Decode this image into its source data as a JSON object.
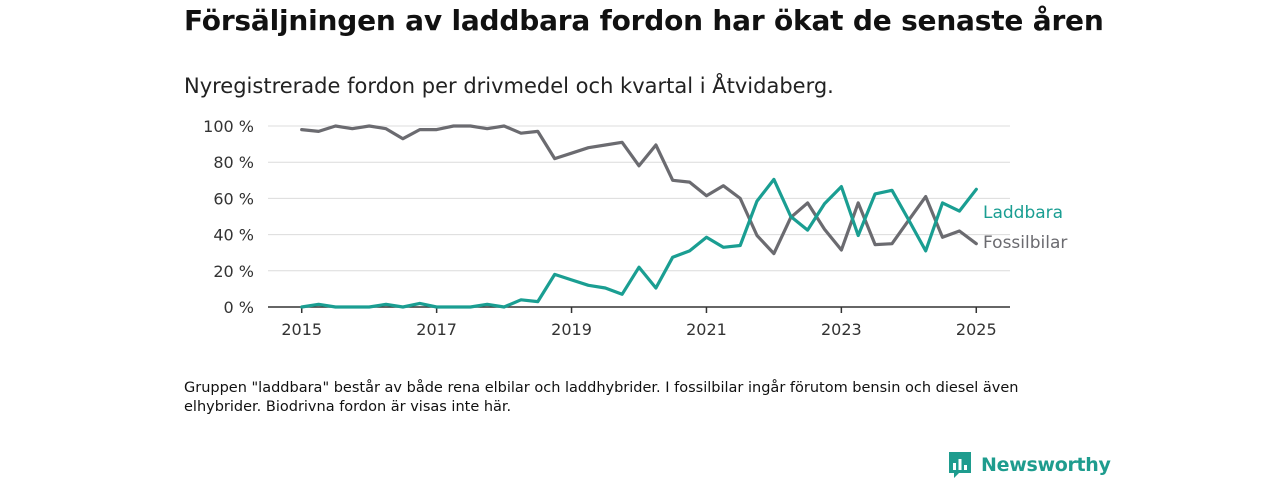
{
  "header": {
    "title": "Försäljningen av laddbara fordon har ökat de senaste åren",
    "subtitle": "Nyregistrerade fordon per drivmedel och kvartal i Åtvidaberg."
  },
  "footer": {
    "note": "Gruppen \"laddbara\" består av både rena elbilar och laddhybrider. I fossilbilar ingår förutom bensin och diesel även elhybrider. Biodrivna fordon är visas inte här.",
    "brand": "Newsworthy"
  },
  "colors": {
    "laddbara": "#1a9e92",
    "fossil": "#6b6b70",
    "grid": "#dcdcdc",
    "axis": "#333333"
  },
  "chart_data": {
    "type": "line",
    "title": "Försäljningen av laddbara fordon har ökat de senaste åren",
    "subtitle": "Nyregistrerade fordon per drivmedel och kvartal i Åtvidaberg.",
    "xlabel": "",
    "ylabel": "",
    "y_unit": "%",
    "ylim": [
      0,
      100
    ],
    "y_ticks": [
      0,
      20,
      40,
      60,
      80,
      100
    ],
    "y_tick_labels": [
      "0 %",
      "20 %",
      "40 %",
      "60 %",
      "80 %",
      "100 %"
    ],
    "x_ticks": [
      2015,
      2017,
      2019,
      2021,
      2023,
      2025
    ],
    "x_tick_labels": [
      "2015",
      "2017",
      "2019",
      "2021",
      "2023",
      "2025"
    ],
    "xlim": [
      2014.5,
      2025.5
    ],
    "grid": "horizontal",
    "legend": "inline-right",
    "x": [
      2015.0,
      2015.25,
      2015.5,
      2015.75,
      2016.0,
      2016.25,
      2016.5,
      2016.75,
      2017.0,
      2017.25,
      2017.5,
      2017.75,
      2018.0,
      2018.25,
      2018.5,
      2018.75,
      2019.0,
      2019.25,
      2019.5,
      2019.75,
      2020.0,
      2020.25,
      2020.5,
      2020.75,
      2021.0,
      2021.25,
      2021.5,
      2021.75,
      2022.0,
      2022.25,
      2022.5,
      2022.75,
      2023.0,
      2023.25,
      2023.5,
      2023.75,
      2024.0,
      2024.25,
      2024.5,
      2024.75,
      2025.0
    ],
    "series": [
      {
        "name": "Laddbara",
        "color": "#1a9e92",
        "values": [
          0,
          1.5,
          0,
          0,
          0,
          1.5,
          0,
          2,
          0,
          0,
          0,
          1.5,
          0,
          4,
          3,
          18,
          15,
          12,
          10.5,
          7,
          22,
          10.5,
          27.5,
          31,
          38.5,
          33,
          34,
          58.5,
          70.5,
          50,
          42.5,
          57,
          66.5,
          39.5,
          62.5,
          64.5,
          48,
          31,
          57.5,
          53,
          65
        ]
      },
      {
        "name": "Fossilbilar",
        "color": "#6b6b70",
        "values": [
          98,
          97,
          100,
          98.5,
          100,
          98.5,
          93,
          98,
          98,
          100,
          100,
          98.5,
          100,
          96,
          97,
          82,
          85,
          88,
          89.5,
          91,
          78,
          89.5,
          70,
          69,
          61.5,
          67,
          60,
          39.5,
          29.5,
          49.5,
          57.5,
          43,
          31.5,
          57.5,
          34.5,
          35,
          48,
          61,
          38.5,
          42,
          35
        ]
      }
    ]
  }
}
